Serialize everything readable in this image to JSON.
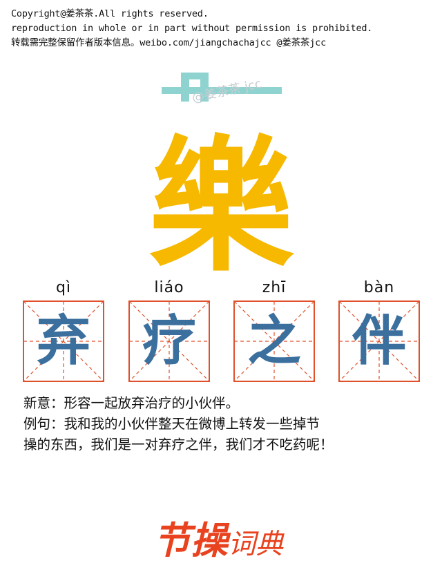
{
  "copyright": {
    "line1": "Copyright@姜茶茶.All rights reserved.",
    "line2": "reproduction in whole or in part without permission is prohibited.",
    "line3": "转载需完整保留作者版本信息。weibo.com/jiangchachajcc @姜茶茶jcc"
  },
  "watermark": "@姜茶茶 jcc",
  "heading_char": "樂",
  "cells": [
    {
      "pinyin": "qì",
      "char": "弃"
    },
    {
      "pinyin": "liáo",
      "char": "疗"
    },
    {
      "pinyin": "zhī",
      "char": "之"
    },
    {
      "pinyin": "bàn",
      "char": "伴"
    }
  ],
  "meaning": "新意：形容一起放弃治疗的小伙伴。",
  "example_line1": "例句：我和我的小伙伴整天在微博上转发一些掉节",
  "example_line2": "操的东西，我们是一对弃疗之伴，我们才不吃药呢！",
  "brand": {
    "main": "节操",
    "sub": "词典"
  },
  "colors": {
    "heading": "#f7b800",
    "grid": "#e0502a",
    "char": "#3b6f9e",
    "brand": "#e8421f",
    "mascot": "#8fd3d1"
  }
}
